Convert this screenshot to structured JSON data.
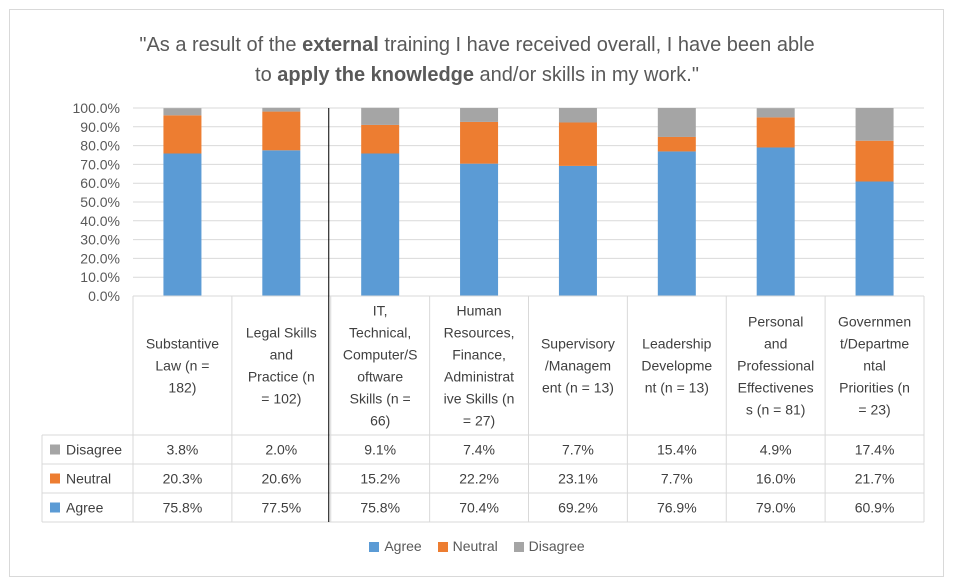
{
  "title": {
    "part1": "\"As a result of the ",
    "bold1": "external",
    "part2": " training I have received overall, I have been able",
    "part3": "to ",
    "bold2": "apply the knowledge",
    "part4": " and/or skills in my work.\""
  },
  "colors": {
    "Agree": "#5b9bd5",
    "Neutral": "#ed7d31",
    "Disagree": "#a5a5a5"
  },
  "chart_data": {
    "type": "bar",
    "stacked": true,
    "categories": [
      [
        "Substantive",
        "Law (n =",
        "182)"
      ],
      [
        "Legal Skills",
        "and",
        "Practice (n",
        "= 102)"
      ],
      [
        "IT,",
        "Technical,",
        "Computer/S",
        "oftware",
        "Skills (n =",
        "66)"
      ],
      [
        "Human",
        "Resources,",
        "Finance,",
        "Administrat",
        "ive Skills (n",
        "= 27)"
      ],
      [
        "Supervisory",
        "/Managem",
        "ent (n = 13)"
      ],
      [
        "Leadership",
        "Developme",
        "nt (n = 13)"
      ],
      [
        "Personal",
        "and",
        "Professional",
        "Effectivenes",
        "s (n = 81)"
      ],
      [
        "Governmen",
        "t/Departme",
        "ntal",
        "Priorities (n",
        "= 23)"
      ]
    ],
    "series": [
      {
        "name": "Agree",
        "values": [
          75.8,
          77.5,
          75.8,
          70.4,
          69.2,
          76.9,
          79.0,
          60.9
        ],
        "labels": [
          "75.8%",
          "77.5%",
          "75.8%",
          "70.4%",
          "69.2%",
          "76.9%",
          "79.0%",
          "60.9%"
        ]
      },
      {
        "name": "Neutral",
        "values": [
          20.3,
          20.6,
          15.2,
          22.2,
          23.1,
          7.7,
          16.0,
          21.7
        ],
        "labels": [
          "20.3%",
          "20.6%",
          "15.2%",
          "22.2%",
          "23.1%",
          "7.7%",
          "16.0%",
          "21.7%"
        ]
      },
      {
        "name": "Disagree",
        "values": [
          3.8,
          2.0,
          9.1,
          7.4,
          7.7,
          15.4,
          4.9,
          17.4
        ],
        "labels": [
          "3.8%",
          "2.0%",
          "9.1%",
          "7.4%",
          "7.7%",
          "15.4%",
          "4.9%",
          "17.4%"
        ]
      }
    ],
    "table_rows": [
      "Disagree",
      "Neutral",
      "Agree"
    ],
    "yticks": [
      "0.0%",
      "10.0%",
      "20.0%",
      "30.0%",
      "40.0%",
      "50.0%",
      "60.0%",
      "70.0%",
      "80.0%",
      "90.0%",
      "100.0%"
    ],
    "ylim": [
      0,
      100
    ],
    "grid": true,
    "legend_position": "bottom",
    "data_table": true
  },
  "legend": [
    "Agree",
    "Neutral",
    "Disagree"
  ]
}
